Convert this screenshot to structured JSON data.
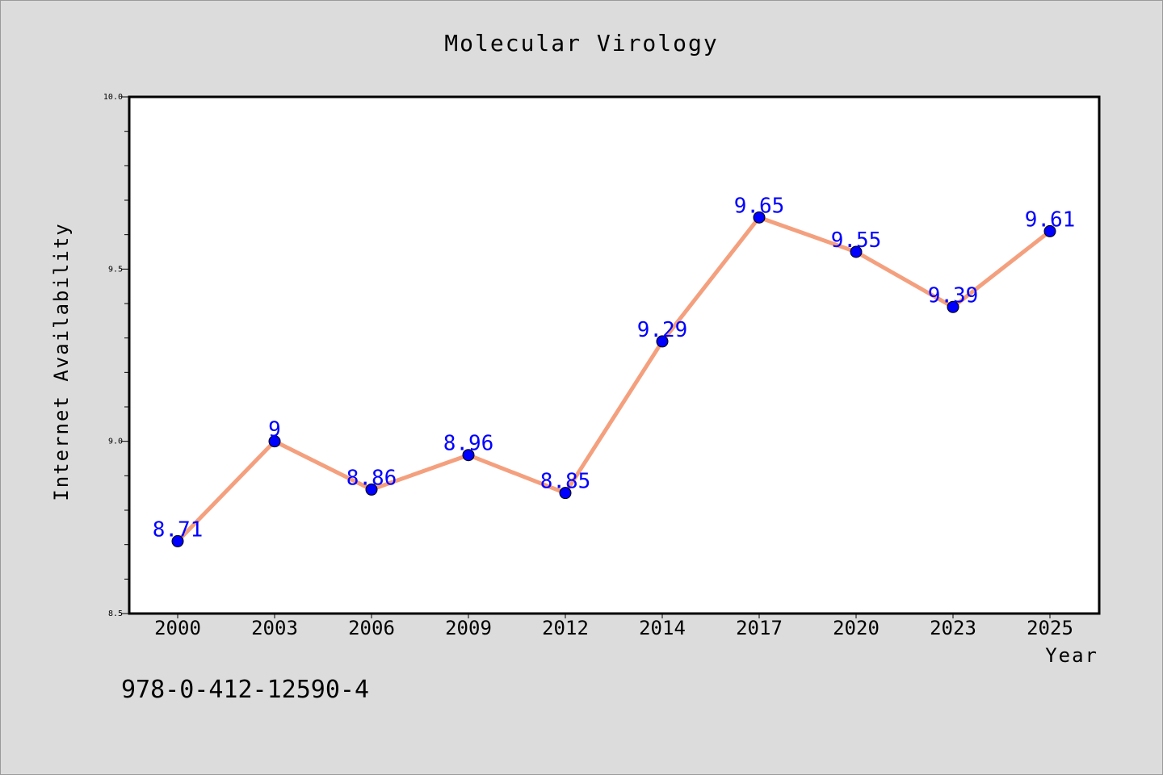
{
  "chart_data": {
    "type": "line",
    "title": "Molecular Virology",
    "xlabel": "Year",
    "ylabel": "Internet Availability",
    "categories": [
      "2000",
      "2003",
      "2006",
      "2009",
      "2012",
      "2014",
      "2017",
      "2020",
      "2023",
      "2025"
    ],
    "values": [
      8.71,
      9.0,
      8.86,
      8.96,
      8.85,
      9.29,
      9.65,
      9.55,
      9.39,
      9.61
    ],
    "data_labels": [
      "8.71",
      "9",
      "8.86",
      "8.96",
      "8.85",
      "9.29",
      "9.65",
      "9.55",
      "9.39",
      "9.61"
    ],
    "ylim": [
      8.5,
      10.0
    ],
    "yticks": [
      "8.5",
      "9.0",
      "9.5",
      "10.0"
    ],
    "grid": false,
    "line_color": "#f4a07e",
    "marker_color": "#0000ff",
    "label_color": "#0000ff"
  },
  "footer_text": "978-0-412-12590-4"
}
